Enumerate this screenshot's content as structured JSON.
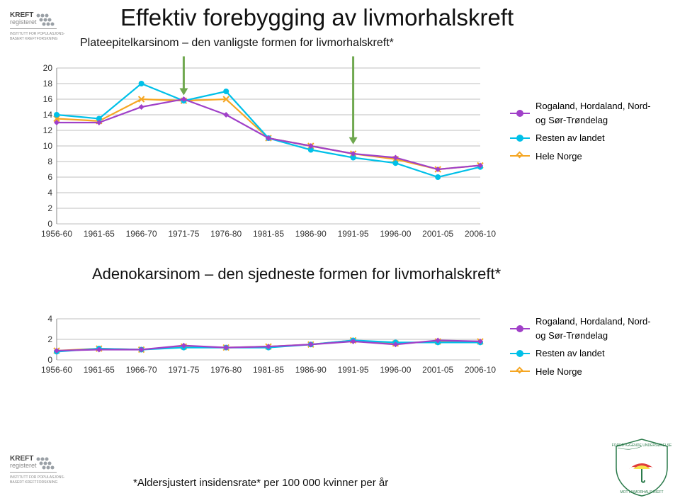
{
  "title": "Effektiv forebygging av livmorhalskreft",
  "subtitle": "Plateepitelkarsinom – den vanligste formen for livmorhalskreft*",
  "section2_title": "Adenokarsinom – den sjedneste formen for livmorhalskreft*",
  "footnote": "*Aldersjustert insidensrate* per 100 000 kvinner per år",
  "colors": {
    "series_rogaland": "#a040c8",
    "series_resten": "#00c0e8",
    "series_hele": "#f5a623",
    "arrow": "#6fa84f",
    "grid": "#bfbfbf",
    "axis": "#888888",
    "tick_text": "#333",
    "bg": "#ffffff"
  },
  "legend_labels": {
    "rogaland": "Rogaland, Hordaland, Nord- og Sør-Trøndelag",
    "resten": "Resten av landet",
    "hele": "Hele Norge"
  },
  "chart1": {
    "type": "line",
    "categories": [
      "1956-60",
      "1961-65",
      "1966-70",
      "1971-75",
      "1976-80",
      "1981-85",
      "1986-90",
      "1991-95",
      "1996-00",
      "2001-05",
      "2006-10"
    ],
    "ylim": [
      0,
      20
    ],
    "ytick_step": 2,
    "tick_fontsize": 12,
    "marker_radius": 4,
    "line_width": 2.2,
    "series": {
      "rogaland": [
        13.0,
        13.0,
        15.0,
        16.0,
        14.0,
        11.0,
        10.0,
        9.0,
        8.5,
        7.0,
        7.5
      ],
      "resten": [
        14.0,
        13.5,
        18.0,
        15.8,
        17.0,
        11.0,
        9.5,
        8.5,
        7.8,
        6.0,
        7.3
      ],
      "hele": [
        13.5,
        13.2,
        16.0,
        15.8,
        16.0,
        11.0,
        10.0,
        9.0,
        8.3,
        7.0,
        7.5
      ]
    },
    "arrows": [
      {
        "x_index": 3,
        "from_y": 21.5,
        "to_y": 16.5
      },
      {
        "x_index": 7,
        "from_y": 21.5,
        "to_y": 10.2
      }
    ]
  },
  "chart2": {
    "type": "line",
    "categories": [
      "1956-60",
      "1961-65",
      "1966-70",
      "1971-75",
      "1976-80",
      "1981-85",
      "1986-90",
      "1991-95",
      "1996-00",
      "2001-05",
      "2006-10"
    ],
    "ylim": [
      0,
      4
    ],
    "ytick_step": 2,
    "tick_fontsize": 12,
    "marker_radius": 4,
    "line_width": 2.2,
    "series": {
      "rogaland": [
        0.9,
        1.0,
        1.0,
        1.4,
        1.2,
        1.3,
        1.5,
        1.8,
        1.5,
        1.9,
        1.8
      ],
      "resten": [
        0.8,
        1.1,
        1.0,
        1.2,
        1.2,
        1.2,
        1.5,
        1.9,
        1.7,
        1.7,
        1.7
      ],
      "hele": [
        0.9,
        1.1,
        1.0,
        1.3,
        1.2,
        1.3,
        1.5,
        1.9,
        1.6,
        1.8,
        1.8
      ]
    }
  }
}
